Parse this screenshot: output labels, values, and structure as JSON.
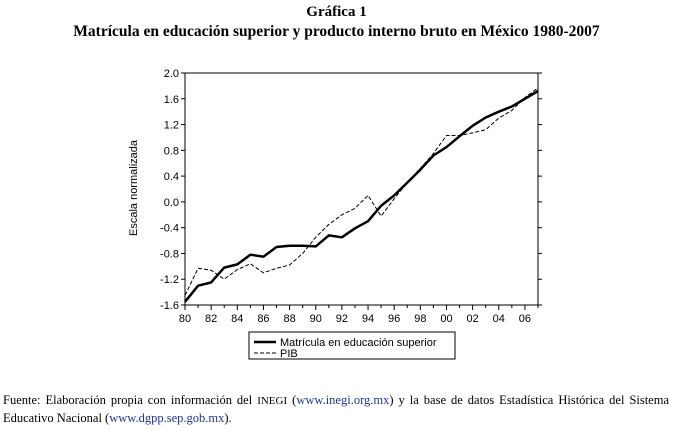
{
  "figure_label": "Gráfica 1",
  "title": "Matrícula en educación superior y producto interno bruto en México 1980-2007",
  "source": {
    "prefix": "Fuente: Elaboración propia con información del ",
    "inegi": "INEGI",
    "middle1": " (",
    "link1": "www.inegi.org.mx",
    "middle2": ") y la base de datos Estadística Histórica del Sistema Educativo Nacional (",
    "link2": "www.dgpp.sep.gob.mx",
    "suffix": ")."
  },
  "colors": {
    "series": "#000000",
    "background": "#ffffff",
    "link": "#2233aa"
  },
  "chart_data": {
    "type": "line",
    "ylabel": "Escala normalizada",
    "xlabel": "",
    "xlim": [
      1980,
      2007
    ],
    "ylim": [
      -1.6,
      2.0
    ],
    "x_tick_labels": [
      "80",
      "82",
      "84",
      "86",
      "88",
      "90",
      "92",
      "94",
      "96",
      "98",
      "00",
      "02",
      "04",
      "06"
    ],
    "y_tick_labels": [
      "2.0",
      "1.6",
      "1.2",
      "0.8",
      "0.4",
      "0.0",
      "-0.4",
      "-0.8",
      "-1.2",
      "-1.6"
    ],
    "legend_position": "bottom",
    "x": [
      1980,
      1981,
      1982,
      1983,
      1984,
      1985,
      1986,
      1987,
      1988,
      1989,
      1990,
      1991,
      1992,
      1993,
      1994,
      1995,
      1996,
      1997,
      1998,
      1999,
      2000,
      2001,
      2002,
      2003,
      2004,
      2005,
      2006,
      2007
    ],
    "series": [
      {
        "name": "Matrícula en educación superior",
        "style": "solid",
        "values": [
          -1.55,
          -1.3,
          -1.25,
          -1.02,
          -0.97,
          -0.82,
          -0.85,
          -0.7,
          -0.68,
          -0.68,
          -0.69,
          -0.52,
          -0.55,
          -0.41,
          -0.3,
          -0.06,
          0.1,
          0.3,
          0.5,
          0.72,
          0.85,
          1.02,
          1.18,
          1.31,
          1.4,
          1.48,
          1.6,
          1.72
        ]
      },
      {
        "name": "PIB",
        "style": "dashed",
        "values": [
          -1.45,
          -1.03,
          -1.06,
          -1.2,
          -1.05,
          -0.96,
          -1.1,
          -1.03,
          -0.98,
          -0.8,
          -0.55,
          -0.35,
          -0.2,
          -0.1,
          0.1,
          -0.22,
          0.05,
          0.3,
          0.52,
          0.75,
          1.03,
          1.03,
          1.07,
          1.12,
          1.3,
          1.42,
          1.62,
          1.77
        ]
      }
    ]
  }
}
